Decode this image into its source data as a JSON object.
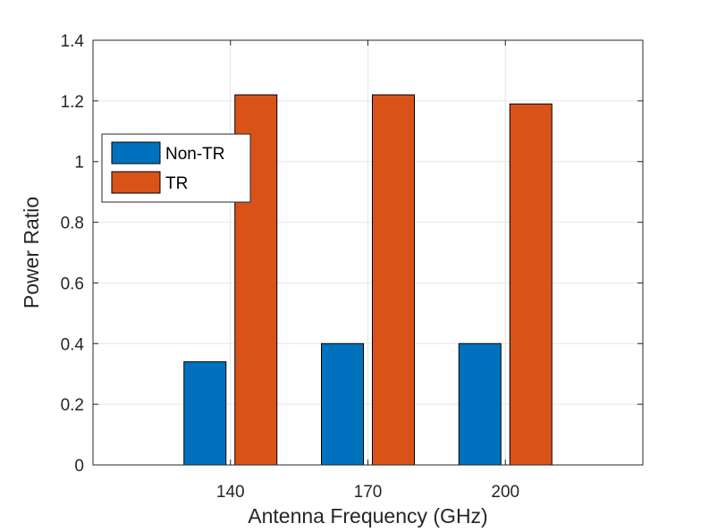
{
  "chart_data": {
    "type": "bar",
    "title": "",
    "xlabel": "Antenna Frequency (GHz)",
    "ylabel": "Power Ratio",
    "categories": [
      "140",
      "170",
      "200"
    ],
    "series": [
      {
        "name": "Non-TR",
        "values": [
          0.34,
          0.4,
          0.4
        ],
        "color": "#0072BD"
      },
      {
        "name": "TR",
        "values": [
          1.22,
          1.22,
          1.19
        ],
        "color": "#D95319"
      }
    ],
    "ylim": [
      0,
      1.4
    ],
    "yticks": [
      "0",
      "0.2",
      "0.4",
      "0.6",
      "0.8",
      "1",
      "1.2",
      "1.4"
    ],
    "grid": true,
    "legend_position": "upper-left"
  }
}
